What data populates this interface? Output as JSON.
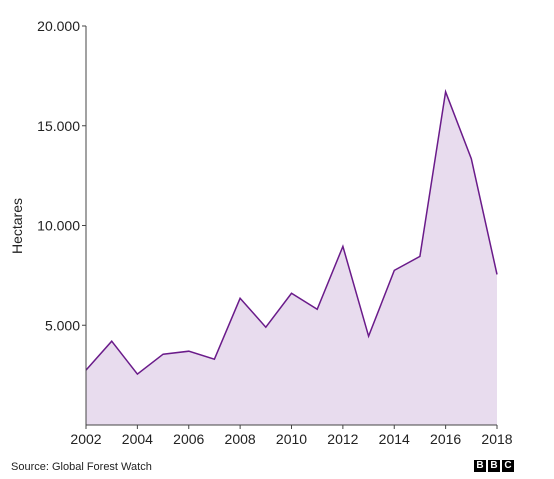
{
  "chart_data": {
    "type": "area",
    "ylabel": "Hectares",
    "x": [
      2002,
      2003,
      2004,
      2005,
      2006,
      2007,
      2008,
      2009,
      2010,
      2011,
      2012,
      2013,
      2014,
      2015,
      2016,
      2017,
      2018
    ],
    "values": [
      2750,
      4200,
      2550,
      3550,
      3700,
      3300,
      6350,
      4900,
      6600,
      5800,
      8950,
      4450,
      7750,
      8450,
      16700,
      13350,
      7550
    ],
    "xlim": [
      2002,
      2018
    ],
    "ylim": [
      0,
      20000
    ],
    "x_ticks": [
      2002,
      2004,
      2006,
      2008,
      2010,
      2012,
      2014,
      2016,
      2018
    ],
    "y_ticks": [
      5000,
      10000,
      15000,
      20000
    ],
    "x_tick_labels": [
      "2002",
      "2004",
      "2006",
      "2008",
      "2010",
      "2012",
      "2014",
      "2016",
      "2018"
    ],
    "y_tick_labels": [
      "5.000",
      "10.000",
      "15.000",
      "20.000"
    ],
    "grid": false,
    "line_color": "#6a1b8a",
    "fill_color": "#e8dcee"
  },
  "footer": {
    "source": "Source: Global Forest Watch",
    "logo": [
      "B",
      "B",
      "C"
    ]
  }
}
